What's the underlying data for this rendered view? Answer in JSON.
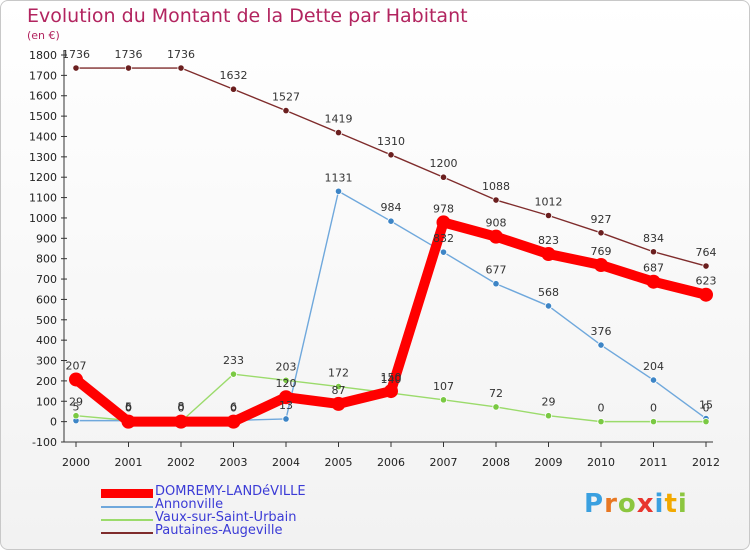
{
  "title": "Evolution du Montant de la Dette par Habitant",
  "subtitle": "(en €)",
  "logo": {
    "letters": [
      "P",
      "r",
      "o",
      "x",
      "i",
      "t",
      "i"
    ],
    "colors": [
      "#3aa0e0",
      "#e87722",
      "#8cc63f",
      "#e8352e",
      "#3aa0e0",
      "#f2a900",
      "#8cc63f"
    ]
  },
  "chart_data": {
    "type": "line",
    "categories": [
      "2000",
      "2001",
      "2002",
      "2003",
      "2004",
      "2005",
      "2006",
      "2007",
      "2008",
      "2009",
      "2010",
      "2011",
      "2012"
    ],
    "ylim": [
      -100,
      1800
    ],
    "yticks": [
      -100,
      0,
      100,
      200,
      300,
      400,
      500,
      600,
      700,
      800,
      900,
      1000,
      1100,
      1200,
      1300,
      1400,
      1500,
      1600,
      1700,
      1800
    ],
    "grid": false,
    "legend_position": "bottom-left",
    "series": [
      {
        "name": "DOMREMY-LANDéVILLE",
        "color": "#ff0000",
        "marker": "#ff0000",
        "bold": true,
        "values": [
          207,
          0,
          0,
          0,
          120,
          87,
          150,
          978,
          908,
          823,
          769,
          687,
          623
        ],
        "labels": [
          "207",
          "0",
          "0",
          "0",
          "120",
          "87",
          "150",
          "978",
          "908",
          "823",
          "769",
          "687",
          "623"
        ]
      },
      {
        "name": "Annonville",
        "color": "#6fa8dc",
        "marker": "#3d85c6",
        "bold": false,
        "values": [
          5,
          5,
          8,
          6,
          13,
          1131,
          984,
          832,
          677,
          568,
          376,
          204,
          15
        ],
        "labels": [
          "5",
          "5",
          "8",
          "6",
          "13",
          "1131",
          "984",
          "832",
          "677",
          "568",
          "376",
          "204",
          "15"
        ]
      },
      {
        "name": "Vaux-sur-Saint-Urbain",
        "color": "#9bdb6b",
        "marker": "#7ac943",
        "bold": false,
        "values": [
          29,
          6,
          0,
          233,
          203,
          172,
          140,
          107,
          72,
          29,
          0,
          0,
          0
        ],
        "labels": [
          "29",
          "6",
          "0",
          "233",
          "203",
          "172",
          "140",
          "107",
          "72",
          "29",
          "0",
          "0",
          "0"
        ]
      },
      {
        "name": "Pautaines-Augeville",
        "color": "#7f2c2c",
        "marker": "#6b1f1f",
        "bold": false,
        "values": [
          1736,
          1736,
          1736,
          1632,
          1527,
          1419,
          1310,
          1200,
          1088,
          1012,
          927,
          834,
          764
        ],
        "labels": [
          "1736",
          "1736",
          "1736",
          "1632",
          "1527",
          "1419",
          "1310",
          "1200",
          "1088",
          "1012",
          "927",
          "834",
          "764"
        ]
      }
    ]
  }
}
